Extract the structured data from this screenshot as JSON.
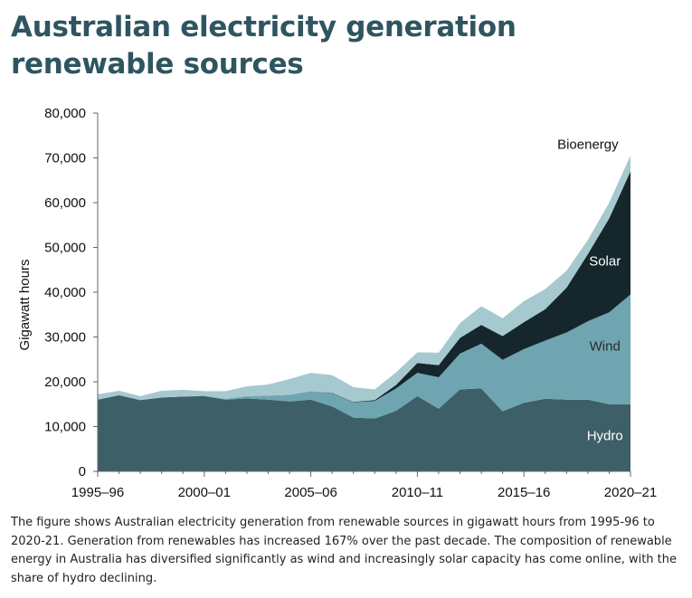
{
  "title": {
    "line1": "Australian electricity generation",
    "line2": "renewable sources"
  },
  "caption": "The figure shows Australian electricity generation from renewable sources in gigawatt hours from 1995-96 to 2020-21. Generation from renewables has increased 167% over the past decade. The composition of renewable energy in Australia has diversified significantly as wind and increasingly solar capacity has come online, with the share of hydro declining.",
  "chart_data": {
    "type": "area",
    "stacked": true,
    "title": "Australian electricity generation renewable sources",
    "xlabel": "",
    "ylabel": "Gigawatt hours",
    "ylim": [
      0,
      80000
    ],
    "yticks": [
      0,
      10000,
      20000,
      30000,
      40000,
      50000,
      60000,
      70000,
      80000
    ],
    "ytick_labels": [
      "0",
      "10,000",
      "20,000",
      "30,000",
      "40,000",
      "50,000",
      "60,000",
      "70,000",
      "80,000"
    ],
    "x": [
      "1995–96",
      "1996–97",
      "1997–98",
      "1998–99",
      "1999–00",
      "2000–01",
      "2001–02",
      "2002–03",
      "2003–04",
      "2004–05",
      "2005–06",
      "2006–07",
      "2007–08",
      "2008–09",
      "2009–10",
      "2010–11",
      "2011–12",
      "2012–13",
      "2013–14",
      "2014–15",
      "2015–16",
      "2016–17",
      "2017–18",
      "2018–19",
      "2019–20",
      "2020–21"
    ],
    "xtick_labels": [
      "1995–96",
      "2000–01",
      "2005–06",
      "2010–11",
      "2015–16",
      "2020–21"
    ],
    "series": [
      {
        "name": "Hydro",
        "color": "#3d5f67",
        "values": [
          16000,
          17000,
          15900,
          16500,
          16700,
          16800,
          16000,
          16300,
          16000,
          15600,
          16000,
          14500,
          12000,
          11800,
          13500,
          16800,
          14000,
          18300,
          18500,
          13400,
          15300,
          16200,
          16000,
          16000,
          15000,
          15000
        ]
      },
      {
        "name": "Wind",
        "color": "#6fa5b0",
        "values": [
          0,
          0,
          0,
          0,
          0,
          100,
          200,
          500,
          900,
          1500,
          1900,
          2900,
          3400,
          3900,
          5000,
          5200,
          7000,
          8000,
          10000,
          11500,
          12000,
          13000,
          15000,
          17500,
          20500,
          24500
        ]
      },
      {
        "name": "Solar",
        "color": "#15272c",
        "values": [
          0,
          0,
          0,
          0,
          0,
          0,
          0,
          0,
          0,
          0,
          0,
          100,
          100,
          200,
          800,
          2200,
          2700,
          3500,
          4200,
          5300,
          6000,
          7000,
          10000,
          15000,
          21000,
          27500
        ]
      },
      {
        "name": "Bioenergy",
        "color": "#a5c9cf",
        "values": [
          1200,
          1000,
          900,
          1500,
          1500,
          1000,
          1700,
          2200,
          2500,
          3500,
          4100,
          4000,
          3300,
          2400,
          2800,
          2400,
          2800,
          3300,
          4200,
          4000,
          4700,
          4500,
          3800,
          3200,
          3500,
          3500
        ]
      }
    ],
    "legend": "inline labels on areas",
    "grid": false
  }
}
